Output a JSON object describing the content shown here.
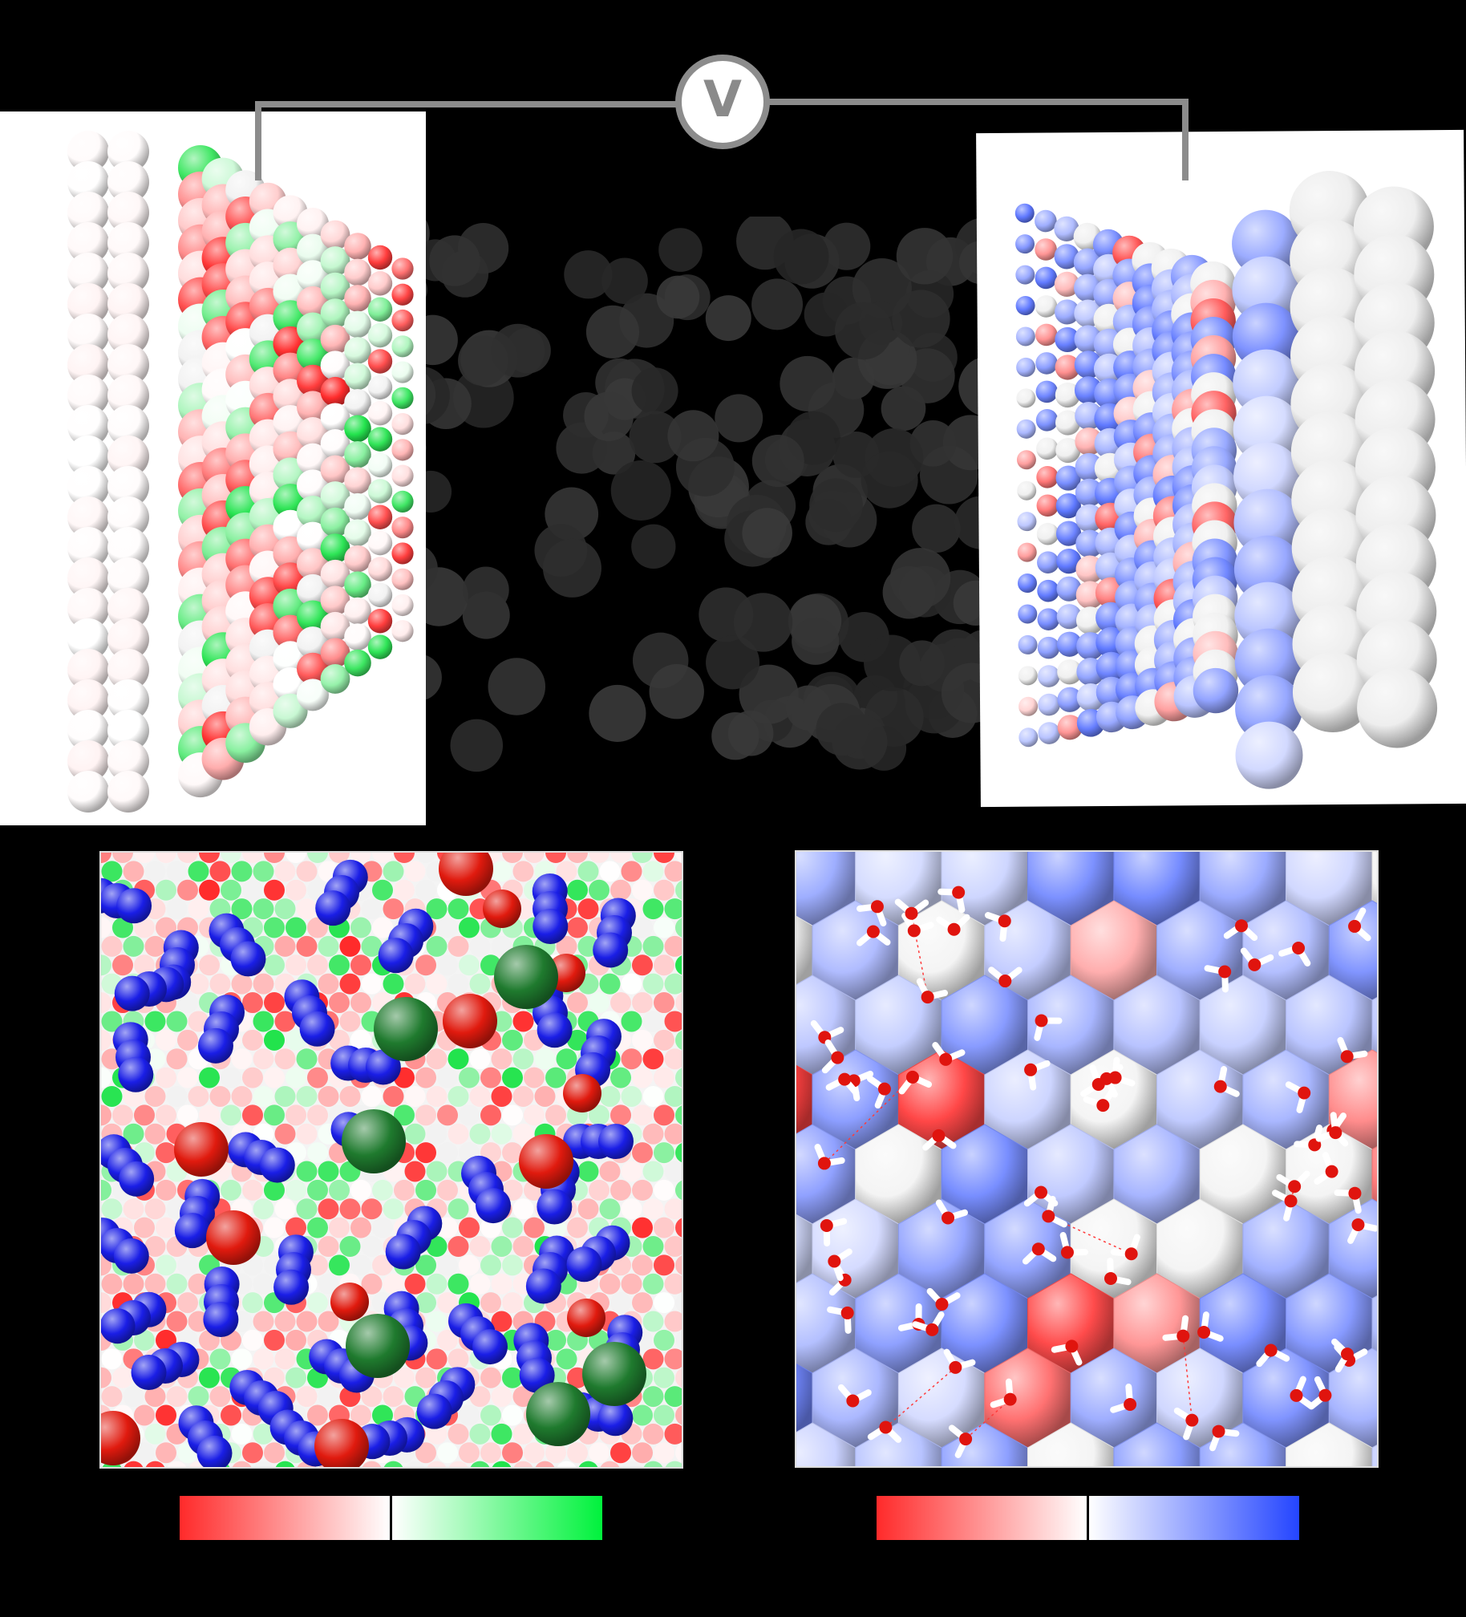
{
  "figure": {
    "voltmeter": {
      "label": "V",
      "line_color": "#8c8c8c"
    },
    "electrode_left": {
      "background": "#ffffff",
      "charge_colors": [
        "#ff2a2a",
        "#ffffff",
        "#1fe34a"
      ]
    },
    "electrode_right": {
      "background": "#ffffff",
      "charge_colors": [
        "#ff2a2a",
        "#ffffff",
        "#3555ff"
      ]
    },
    "electrolyte": {
      "color": "#3a3a3a"
    },
    "panel_left": {
      "ion_colors": {
        "blue": "#1a1ee6",
        "red": "#e01a0e",
        "green": "#1f7a2e"
      }
    },
    "panel_right": {
      "water_oxygen": "#e0140e",
      "water_hydrogen": "#ffffff",
      "hbond": "#ff3b3b"
    },
    "colorbar_left": {
      "stops": [
        "#ff2a2a",
        "#ffffff",
        "#ffffff",
        "#00f23c"
      ]
    },
    "colorbar_right": {
      "stops": [
        "#ff2a2a",
        "#ffffff",
        "#ffffff",
        "#2445ff"
      ]
    }
  }
}
